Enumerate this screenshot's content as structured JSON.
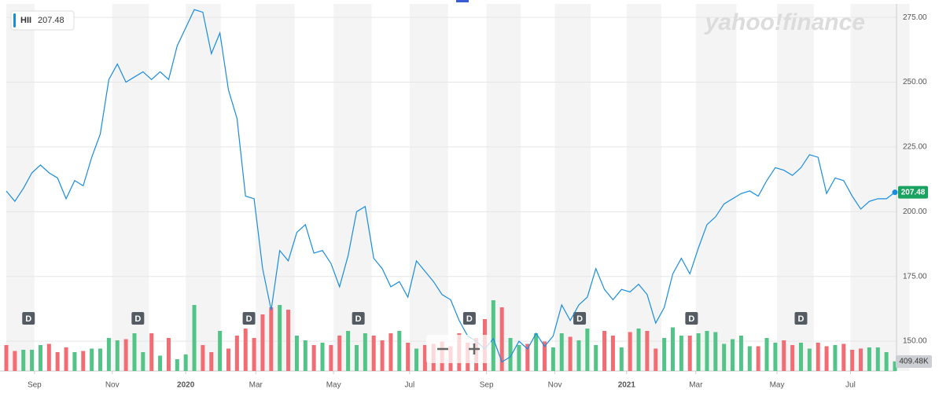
{
  "chart_data": {
    "type": "line",
    "symbol": "HII",
    "last_label": "207.48",
    "watermark": "yahoo!finance",
    "color": "#1a8ce0",
    "up_color": "#52c487",
    "down_color": "#f26d73",
    "values": [
      208,
      204,
      209,
      215,
      218,
      215,
      213,
      205,
      212,
      210,
      221,
      230,
      251,
      257,
      250,
      252,
      254,
      251,
      254,
      251,
      264,
      271,
      278,
      277,
      261,
      269,
      247,
      236,
      206,
      205,
      178,
      162,
      185,
      181,
      192,
      195,
      184,
      185,
      180,
      171,
      183,
      200,
      202,
      182,
      178,
      171,
      173,
      167,
      181,
      177,
      173,
      168,
      166,
      158,
      152,
      150,
      147,
      151,
      142,
      144,
      150,
      147,
      153,
      148,
      152,
      164,
      158,
      164,
      167,
      178,
      170,
      166,
      170,
      169,
      172,
      168,
      157,
      163,
      176,
      182,
      176,
      186,
      195,
      198,
      203,
      205,
      207,
      208,
      206,
      212,
      217,
      216,
      214,
      217,
      222,
      221,
      207,
      213,
      212,
      206,
      201,
      204,
      205,
      205,
      207.48
    ],
    "volume": [
      1100,
      850,
      900,
      900,
      1100,
      1150,
      800,
      1000,
      800,
      850,
      950,
      950,
      1400,
      1300,
      1350,
      1600,
      800,
      1600,
      650,
      1400,
      500,
      700,
      2800,
      1100,
      800,
      1700,
      950,
      1500,
      1800,
      1400,
      2400,
      2700,
      2800,
      2600,
      1500,
      1300,
      1100,
      1200,
      1100,
      1500,
      1700,
      1100,
      1600,
      1500,
      1300,
      1600,
      1700,
      1200,
      950,
      1100,
      1150,
      1250,
      1050,
      1600,
      1200,
      1400,
      2200,
      3000,
      2700,
      1400,
      1100,
      1150,
      1600,
      1250,
      1000,
      1600,
      1450,
      1300,
      1800,
      1100,
      1700,
      1500,
      1000,
      1650,
      1800,
      1700,
      950,
      1400,
      1850,
      1500,
      1500,
      1600,
      1700,
      1650,
      1150,
      1350,
      1500,
      1050,
      1050,
      1400,
      1200,
      1300,
      1100,
      1200,
      950,
      1200,
      1050,
      1100,
      1150,
      900,
      950,
      1000,
      1000,
      800,
      409.48
    ],
    "volume_last_label": "409.48K",
    "volume_lim": [
      0,
      4000
    ],
    "xlim": [
      0,
      104
    ],
    "xticks": [
      {
        "value": 3.3,
        "label": "Sep"
      },
      {
        "value": 12.4,
        "label": "Nov"
      },
      {
        "value": 21,
        "label": "2020"
      },
      {
        "value": 29.2,
        "label": "Mar"
      },
      {
        "value": 38.3,
        "label": "May"
      },
      {
        "value": 47.2,
        "label": "Jul"
      },
      {
        "value": 56.2,
        "label": "Sep"
      },
      {
        "value": 64.2,
        "label": "Nov"
      },
      {
        "value": 72.6,
        "label": "2021"
      },
      {
        "value": 80.7,
        "label": "Mar"
      },
      {
        "value": 90.2,
        "label": "May"
      },
      {
        "value": 98.8,
        "label": "Jul"
      }
    ],
    "ylim": [
      138.5,
      280.2
    ],
    "yticks": [
      {
        "value": 150,
        "label": "150.00"
      },
      {
        "value": 175,
        "label": "175.00"
      },
      {
        "value": 200,
        "label": "200.00"
      },
      {
        "value": 225,
        "label": "225.00"
      },
      {
        "value": 250,
        "label": "250.00"
      },
      {
        "value": 275,
        "label": "275.00"
      }
    ],
    "events": [
      {
        "label": "D",
        "x": 2.6
      },
      {
        "label": "D",
        "x": 15.4
      },
      {
        "label": "D",
        "x": 28.4
      },
      {
        "label": "D",
        "x": 41.2
      },
      {
        "label": "D",
        "x": 54.2
      },
      {
        "label": "D",
        "x": 67.1
      },
      {
        "label": "D",
        "x": 80.2
      },
      {
        "label": "D",
        "x": 93
      }
    ],
    "grid": true
  }
}
